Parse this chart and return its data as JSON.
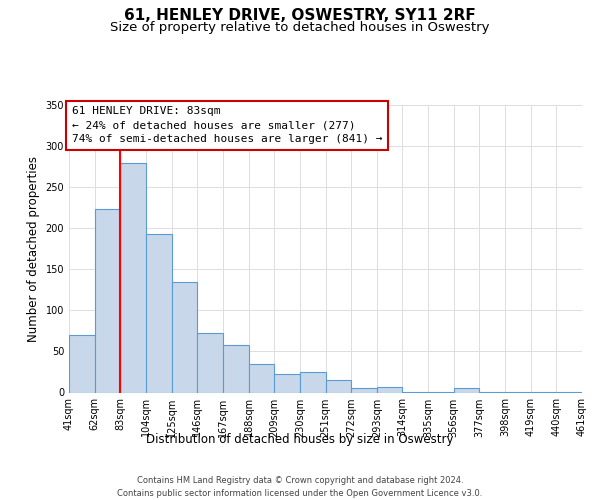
{
  "title": "61, HENLEY DRIVE, OSWESTRY, SY11 2RF",
  "subtitle": "Size of property relative to detached houses in Oswestry",
  "xlabel": "Distribution of detached houses by size in Oswestry",
  "ylabel": "Number of detached properties",
  "bar_values": [
    70,
    224,
    280,
    193,
    135,
    73,
    58,
    35,
    23,
    25,
    15,
    5,
    7,
    1,
    1,
    5,
    1,
    1,
    1,
    1
  ],
  "bin_edges": [
    41,
    62,
    83,
    104,
    125,
    146,
    167,
    188,
    209,
    230,
    251,
    272,
    293,
    314,
    335,
    356,
    377,
    398,
    419,
    440,
    461
  ],
  "bar_color": "#c8d8ea",
  "bar_edge_color": "#5b9bd5",
  "red_line_x": 83,
  "annotation_line1": "61 HENLEY DRIVE: 83sqm",
  "annotation_line2": "← 24% of detached houses are smaller (277)",
  "annotation_line3": "74% of semi-detached houses are larger (841) →",
  "annotation_box_color": "#ffffff",
  "annotation_border_color": "#cc0000",
  "ylim": [
    0,
    350
  ],
  "yticks": [
    0,
    50,
    100,
    150,
    200,
    250,
    300,
    350
  ],
  "bin_labels": [
    "41sqm",
    "62sqm",
    "83sqm",
    "104sqm",
    "125sqm",
    "146sqm",
    "167sqm",
    "188sqm",
    "209sqm",
    "230sqm",
    "251sqm",
    "272sqm",
    "293sqm",
    "314sqm",
    "335sqm",
    "356sqm",
    "377sqm",
    "398sqm",
    "419sqm",
    "440sqm",
    "461sqm"
  ],
  "footer_line1": "Contains HM Land Registry data © Crown copyright and database right 2024.",
  "footer_line2": "Contains public sector information licensed under the Open Government Licence v3.0.",
  "background_color": "#ffffff",
  "grid_color": "#dddddd",
  "title_fontsize": 11,
  "subtitle_fontsize": 9.5,
  "axis_label_fontsize": 8.5,
  "tick_fontsize": 7,
  "annotation_fontsize": 8,
  "footer_fontsize": 6
}
